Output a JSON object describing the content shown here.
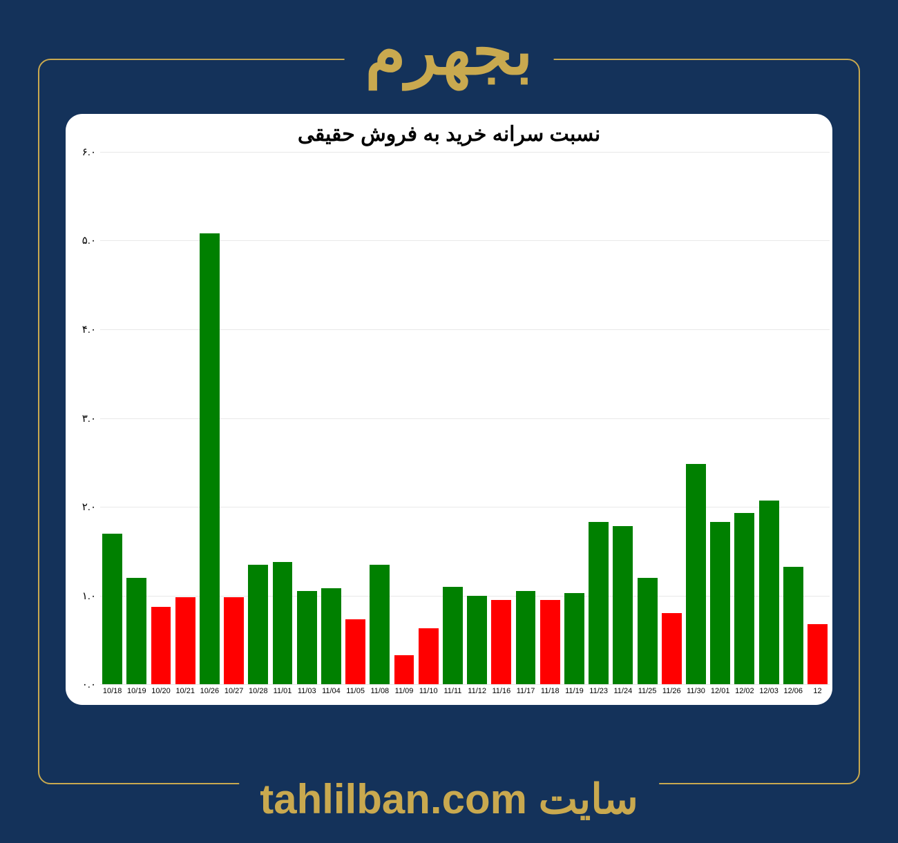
{
  "page": {
    "background_color": "#14325a",
    "frame_border_color": "#c9a94f",
    "header_title": "بجهرم",
    "header_title_color": "#c9a94f",
    "header_title_fontsize": 95,
    "footer_text": "سایت tahlilban.com",
    "footer_text_color": "#c9a94f",
    "footer_text_fontsize": 60
  },
  "chart": {
    "type": "bar",
    "title": "نسبت سرانه خرید به فروش حقیقی",
    "title_fontsize": 30,
    "title_color": "#000000",
    "card_background": "#ffffff",
    "card_border_radius": 24,
    "ylim": [
      0,
      6
    ],
    "ytick_step": 1,
    "ytick_labels": [
      "۰.۰",
      "۱.۰",
      "۲.۰",
      "۳.۰",
      "۴.۰",
      "۵.۰",
      "۶.۰"
    ],
    "ytick_fontsize": 15,
    "grid_color": "#e8e8e8",
    "axis_color": "#000000",
    "bar_width": 0.82,
    "color_positive": "#008000",
    "color_negative": "#ff0000",
    "categories": [
      "10/18",
      "10/19",
      "10/20",
      "10/21",
      "10/26",
      "10/27",
      "10/28",
      "11/01",
      "11/03",
      "11/04",
      "11/05",
      "11/08",
      "11/09",
      "11/10",
      "11/11",
      "11/12",
      "11/16",
      "11/17",
      "11/18",
      "11/19",
      "11/23",
      "11/24",
      "11/25",
      "11/26",
      "11/30",
      "12/01",
      "12/02",
      "12/03",
      "12/06",
      "12"
    ],
    "values": [
      1.7,
      1.2,
      0.87,
      0.98,
      5.08,
      0.98,
      1.35,
      1.38,
      1.05,
      1.08,
      0.73,
      1.35,
      0.33,
      0.63,
      1.1,
      1.0,
      0.95,
      1.05,
      0.95,
      1.03,
      1.83,
      1.78,
      1.2,
      0.8,
      2.48,
      1.83,
      1.93,
      2.07,
      1.32,
      0.68
    ],
    "bar_colors_index": [
      "p",
      "p",
      "n",
      "n",
      "p",
      "n",
      "p",
      "p",
      "p",
      "p",
      "n",
      "p",
      "n",
      "n",
      "p",
      "p",
      "n",
      "p",
      "n",
      "p",
      "p",
      "p",
      "p",
      "n",
      "p",
      "p",
      "p",
      "p",
      "p",
      "n"
    ],
    "xlabel_fontsize": 11
  }
}
